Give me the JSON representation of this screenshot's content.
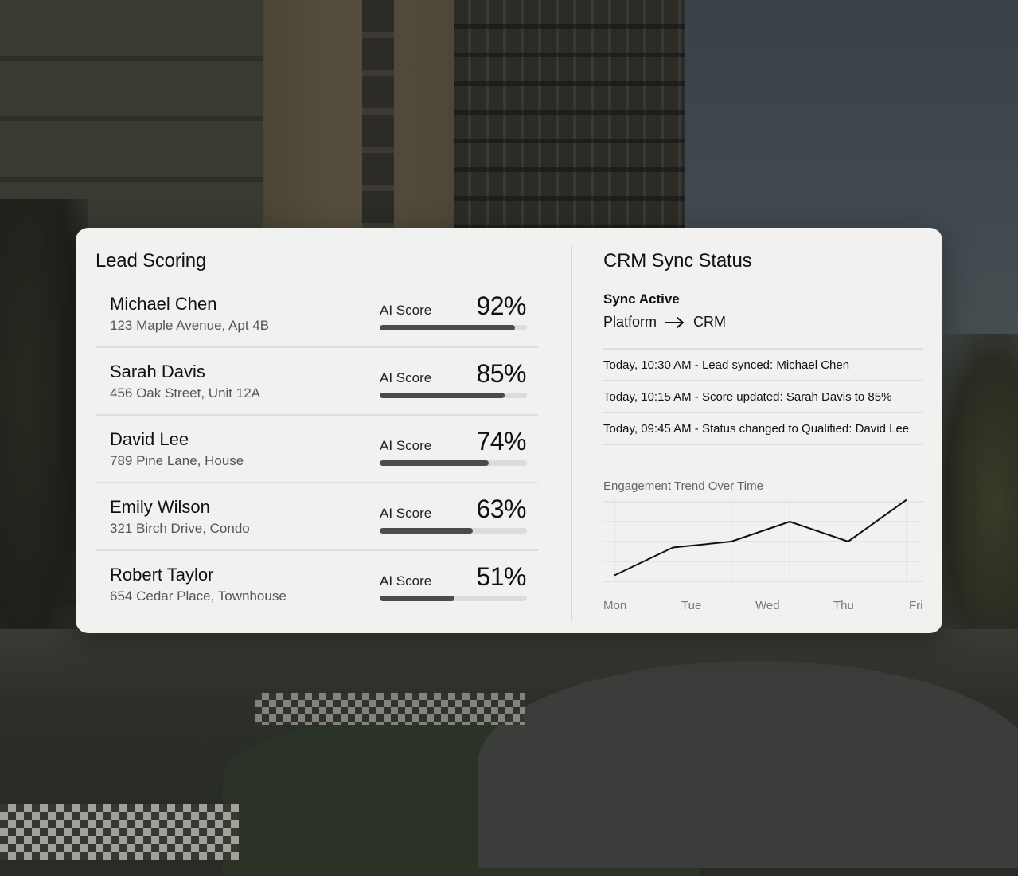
{
  "lead_scoring": {
    "title": "Lead Scoring",
    "score_label": "AI Score",
    "leads": [
      {
        "name": "Michael Chen",
        "address": "123 Maple Avenue, Apt 4B",
        "score": "92%",
        "value": 92
      },
      {
        "name": "Sarah Davis",
        "address": "456 Oak Street, Unit 12A",
        "score": "85%",
        "value": 85
      },
      {
        "name": "David Lee",
        "address": "789 Pine Lane, House",
        "score": "74%",
        "value": 74
      },
      {
        "name": "Emily Wilson",
        "address": "321 Birch Drive, Condo",
        "score": "63%",
        "value": 63
      },
      {
        "name": "Robert Taylor",
        "address": "654 Cedar Place, Townhouse",
        "score": "51%",
        "value": 51
      }
    ]
  },
  "crm_sync": {
    "title": "CRM Sync Status",
    "status": "Sync Active",
    "source": "Platform",
    "arrow_icon": "arrow-right-icon",
    "target": "CRM",
    "log": [
      "Today, 10:30 AM - Lead synced: Michael Chen",
      "Today, 10:15 AM - Score updated: Sarah Davis to 85%",
      "Today, 09:45 AM - Status changed to Qualified: David Lee"
    ],
    "chart_title": "Engagement Trend Over Time"
  },
  "colors": {
    "card_bg": "#f1f1f0",
    "bar_fill": "#4b4b4b",
    "bar_track": "#dcdcda",
    "line": "#111111"
  },
  "chart_data": {
    "type": "line",
    "title": "Engagement Trend Over Time",
    "categories": [
      "Mon",
      "Tue",
      "Wed",
      "Thu",
      "Fri"
    ],
    "x_points": [
      "Mon",
      "",
      "",
      "",
      "",
      "Fri"
    ],
    "values": [
      0.3,
      1.7,
      2.0,
      3.0,
      2.0,
      4.1
    ],
    "xlabel": "",
    "ylabel": "",
    "ylim": [
      0,
      4
    ],
    "grid": true,
    "legend": "none"
  }
}
